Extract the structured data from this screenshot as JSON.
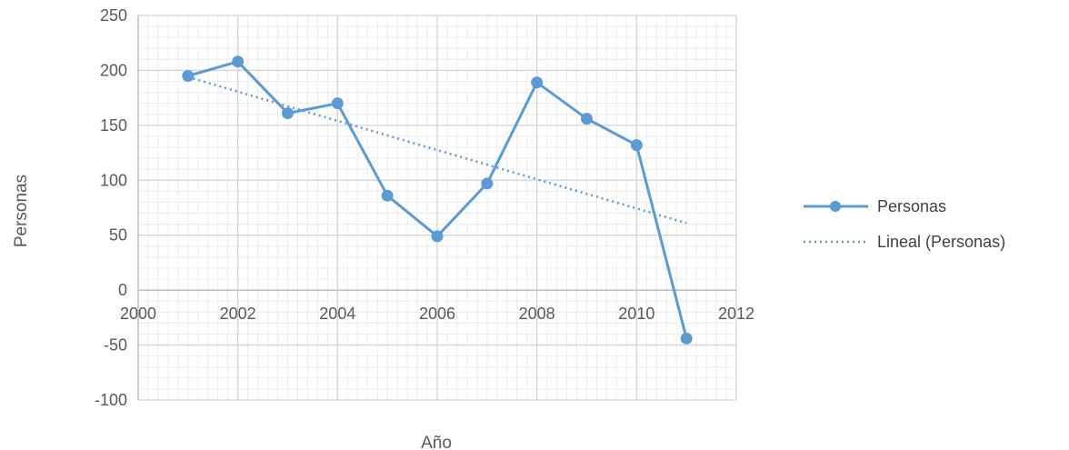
{
  "chart_data": {
    "type": "line",
    "xlabel": "Año",
    "ylabel": "Personas",
    "xlim": [
      2000,
      2012
    ],
    "ylim": [
      -100,
      250
    ],
    "x_ticks": [
      2000,
      2002,
      2004,
      2006,
      2008,
      2010,
      2012
    ],
    "y_ticks": [
      -100,
      -50,
      0,
      50,
      100,
      150,
      200,
      250
    ],
    "grid": true,
    "legend_position": "right",
    "series": [
      {
        "name": "Personas",
        "style": "solid-with-markers",
        "color": "#5b9bd5",
        "x": [
          2001,
          2002,
          2003,
          2004,
          2005,
          2006,
          2007,
          2008,
          2009,
          2010,
          2011
        ],
        "y": [
          195,
          208,
          161,
          170,
          86,
          49,
          97,
          189,
          156,
          132,
          -44
        ]
      },
      {
        "name": "Lineal (Personas)",
        "style": "dotted-trendline",
        "color": "#5b9bd5",
        "x": [
          2001,
          2011
        ],
        "y": [
          194,
          61
        ]
      }
    ]
  }
}
